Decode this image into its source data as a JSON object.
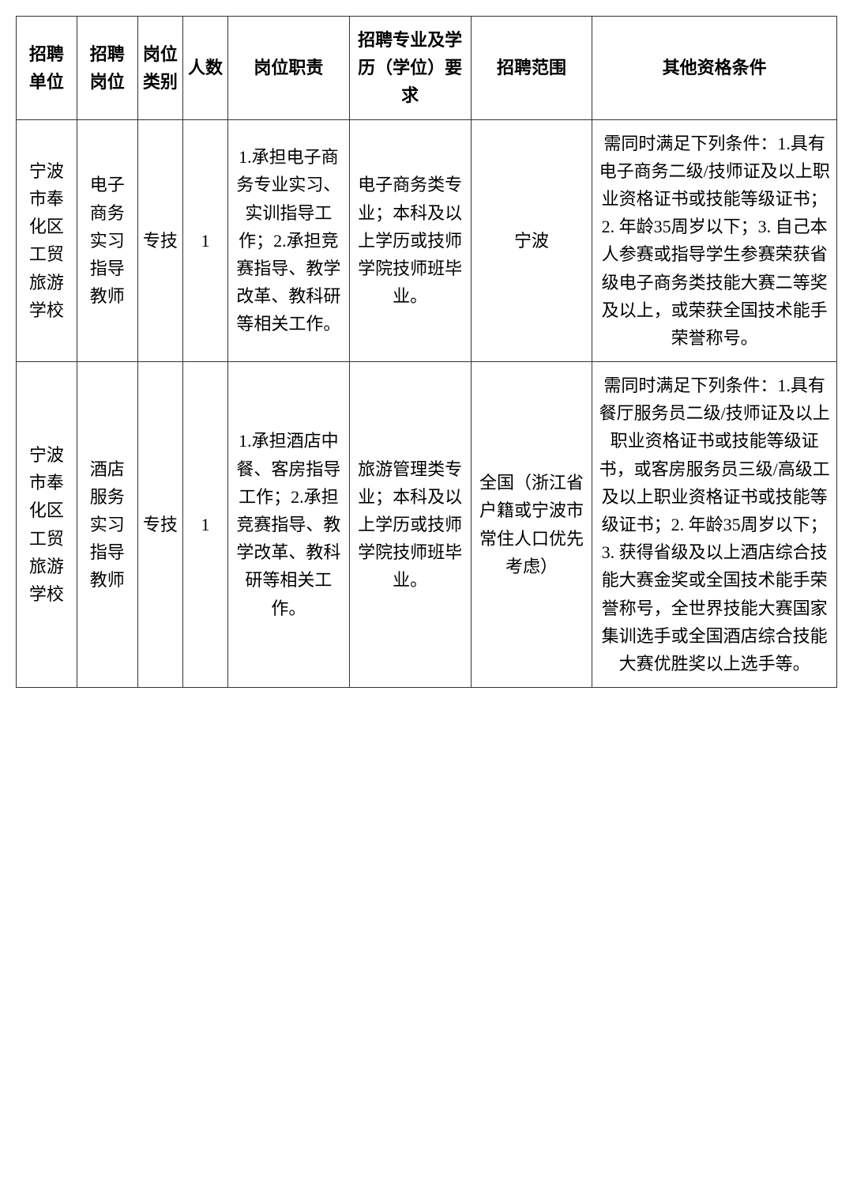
{
  "table": {
    "headers": [
      "招聘单位",
      "招聘岗位",
      "岗位类别",
      "人数",
      "岗位职责",
      "招聘专业及学历（学位）要求",
      "招聘范围",
      "其他资格条件"
    ],
    "rows": [
      {
        "unit": "宁波市奉化区工贸旅游学校",
        "position": "电子商务实习指导教师",
        "category": "专技",
        "count": "1",
        "duties": "1.承担电子商务专业实习、实训指导工作；2.承担竞赛指导、教学改革、教科研等相关工作。",
        "requirements": "电子商务类专业；本科及以上学历或技师学院技师班毕业。",
        "scope": "宁波",
        "other": "需同时满足下列条件：1.具有电子商务二级/技师证及以上职业资格证书或技能等级证书；2. 年龄35周岁以下；3. 自己本人参赛或指导学生参赛荣获省级电子商务类技能大赛二等奖及以上，或荣获全国技术能手荣誉称号。"
      },
      {
        "unit": "宁波市奉化区工贸旅游学校",
        "position": "酒店服务实习指导教师",
        "category": "专技",
        "count": "1",
        "duties": "1.承担酒店中餐、客房指导工作；2.承担竞赛指导、教学改革、教科研等相关工作。",
        "requirements": "旅游管理类专业；本科及以上学历或技师学院技师班毕业。",
        "scope": "全国（浙江省户籍或宁波市常住人口优先考虑）",
        "other": "需同时满足下列条件：1.具有餐厅服务员二级/技师证及以上职业资格证书或技能等级证书，或客房服务员三级/高级工及以上职业资格证书或技能等级证书；2. 年龄35周岁以下；3. 获得省级及以上酒店综合技能大赛金奖或全国技术能手荣誉称号，全世界技能大赛国家集训选手或全国酒店综合技能大赛优胜奖以上选手等。"
      }
    ],
    "border_color": "#333333",
    "background_color": "#ffffff",
    "font_size": 22,
    "column_widths": [
      "7.4%",
      "7.4%",
      "5.5%",
      "5.5%",
      "14.8%",
      "14.8%",
      "14.8%",
      "29.8%"
    ]
  }
}
